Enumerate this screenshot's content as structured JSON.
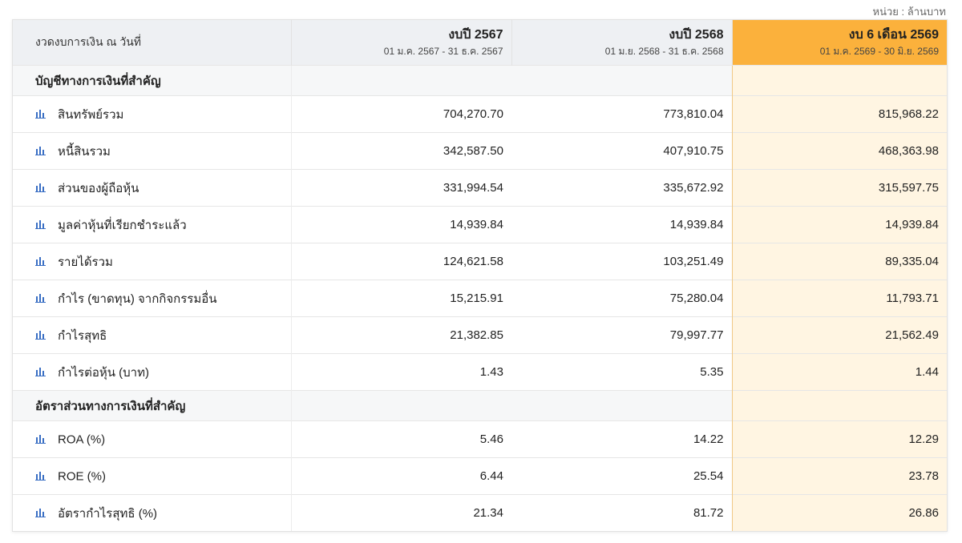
{
  "unit_label": "หน่วย : ล้านบาท",
  "header": {
    "period_label": "งวดงบการเงิน ณ วันที่",
    "columns": [
      {
        "title": "งบปี 2567",
        "range": "01 ม.ค. 2567 - 31 ธ.ค. 2567"
      },
      {
        "title": "งบปี 2568",
        "range": "01 ม.ย. 2568 - 31 ธ.ค. 2568"
      },
      {
        "title": "งบ 6 เดือน 2569",
        "range": "01 ม.ค. 2569 - 30 มิ.ย. 2569"
      }
    ],
    "highlight_color": "#fbb13c"
  },
  "sections": [
    {
      "title": "บัญชีทางการเงินที่สำคัญ",
      "rows": [
        {
          "label": "สินทรัพย์รวม",
          "values": [
            "704,270.70",
            "773,810.04",
            "815,968.22"
          ]
        },
        {
          "label": "หนี้สินรวม",
          "values": [
            "342,587.50",
            "407,910.75",
            "468,363.98"
          ]
        },
        {
          "label": "ส่วนของผู้ถือหุ้น",
          "values": [
            "331,994.54",
            "335,672.92",
            "315,597.75"
          ]
        },
        {
          "label": "มูลค่าหุ้นที่เรียกชำระแล้ว",
          "values": [
            "14,939.84",
            "14,939.84",
            "14,939.84"
          ]
        },
        {
          "label": "รายได้รวม",
          "values": [
            "124,621.58",
            "103,251.49",
            "89,335.04"
          ]
        },
        {
          "label": "กำไร (ขาดทุน) จากกิจกรรมอื่น",
          "values": [
            "15,215.91",
            "75,280.04",
            "11,793.71"
          ]
        },
        {
          "label": "กำไรสุทธิ",
          "values": [
            "21,382.85",
            "79,997.77",
            "21,562.49"
          ]
        },
        {
          "label": "กำไรต่อหุ้น (บาท)",
          "values": [
            "1.43",
            "5.35",
            "1.44"
          ]
        }
      ]
    },
    {
      "title": "อัตราส่วนทางการเงินที่สำคัญ",
      "rows": [
        {
          "label": "ROA (%)",
          "values": [
            "5.46",
            "14.22",
            "12.29"
          ]
        },
        {
          "label": "ROE (%)",
          "values": [
            "6.44",
            "25.54",
            "23.78"
          ]
        },
        {
          "label": "อัตรากำไรสุทธิ (%)",
          "values": [
            "21.34",
            "81.72",
            "26.86"
          ]
        }
      ]
    }
  ],
  "icon": {
    "name": "bar-chart-icon",
    "color": "#3a6fc4"
  }
}
